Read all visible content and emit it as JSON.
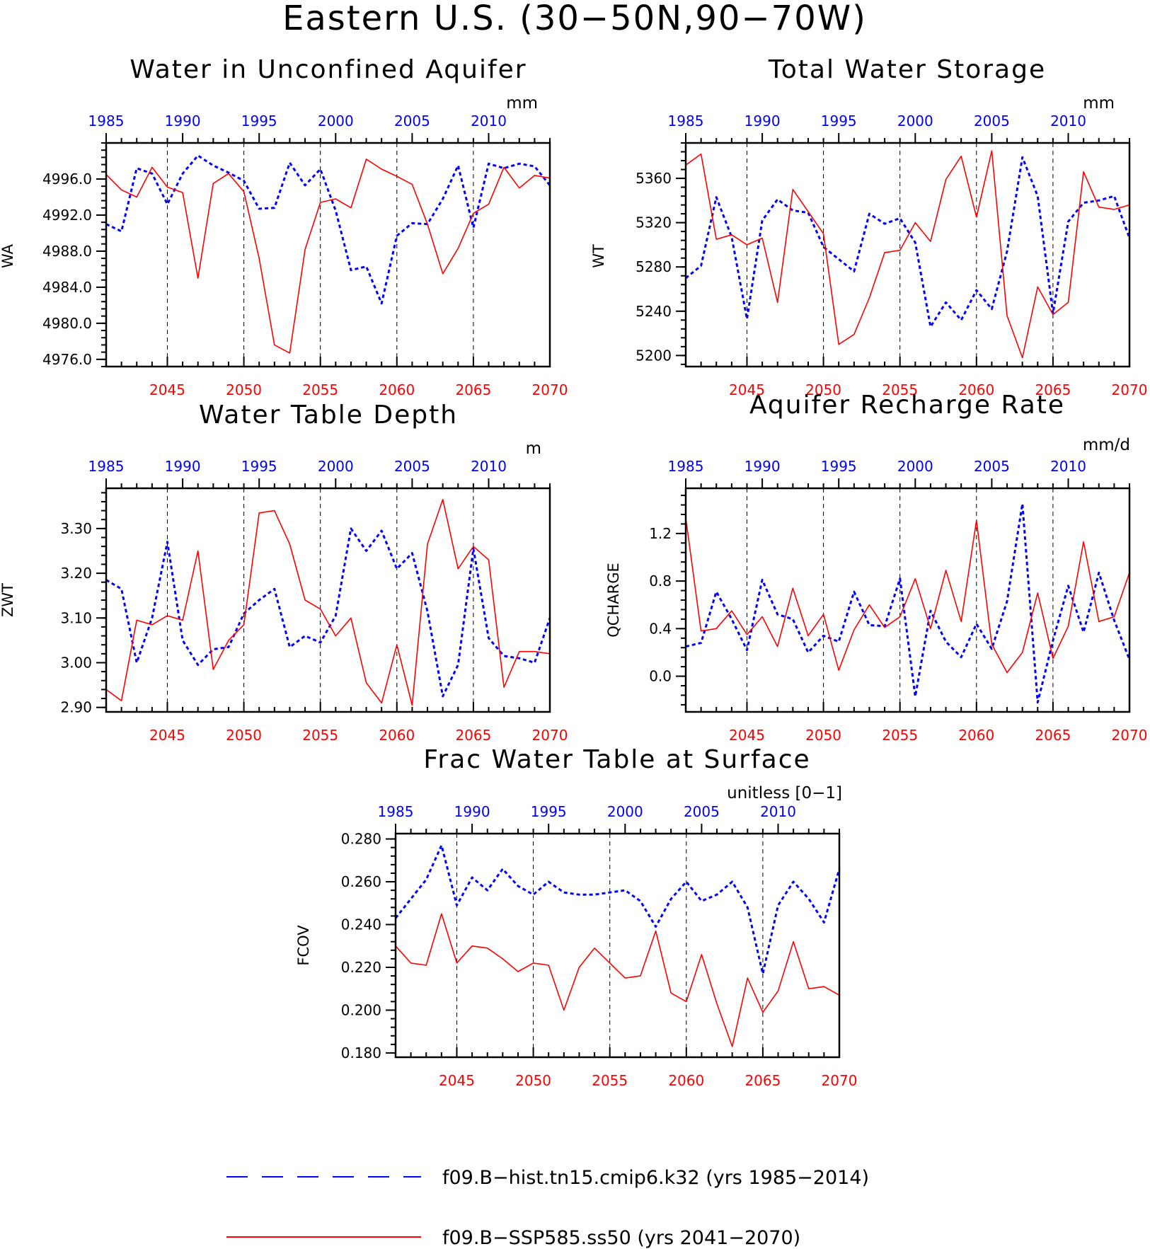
{
  "figure": {
    "title": "Eastern U.S. (30−50N,90−70W)",
    "top_axis_color": "#0000ff",
    "bottom_axis_color": "#ff0000",
    "top_ticks": [
      1985,
      1990,
      1995,
      2000,
      2005,
      2010
    ],
    "bottom_ticks": [
      2045,
      2050,
      2055,
      2060,
      2065,
      2070
    ],
    "dashed_verticals_at": [
      2045,
      2050,
      2055,
      2060,
      2065
    ]
  },
  "legend": {
    "hist": {
      "label": "f09.B−hist.tn15.cmip6.k32 (yrs 1985−2014)",
      "color": "#0000ff",
      "style": "dashed"
    },
    "ssp": {
      "label": "f09.B−SSP585.ss50 (yrs 2041−2070)",
      "color": "#ff0000",
      "style": "solid"
    }
  },
  "chart_data": [
    {
      "type": "line",
      "title": "Water in Unconfined Aquifer",
      "units": "mm",
      "ylabel": "WA",
      "ylim": [
        4975.2,
        5000.0
      ],
      "yticks": [
        4976.0,
        4980.0,
        4984.0,
        4988.0,
        4992.0,
        4996.0
      ],
      "ytick_labels": [
        "4976.0",
        "4980.0",
        "4984.0",
        "4988.0",
        "4992.0",
        "4996.0"
      ],
      "x_bottom": [
        2041,
        2070
      ],
      "x_top": [
        1985,
        2014
      ],
      "series": [
        {
          "values": [
            4991.0,
            4990.2,
            4997.2,
            4996.6,
            4993.2,
            4996.6,
            4998.6,
            4997.5,
            4996.7,
            4995.8,
            4992.7,
            4992.8,
            4997.8,
            4995.3,
            4997.1,
            4992.5,
            4985.9,
            4986.3,
            4982.2,
            4989.7,
            4991.1,
            4991.0,
            4993.8,
            4997.5,
            4990.6,
            4997.7,
            4997.2,
            4997.7,
            4997.4,
            4995.3
          ]
        },
        {
          "values": [
            4996.5,
            4994.8,
            4994.0,
            4997.3,
            4995.1,
            4994.5,
            4985.0,
            4995.5,
            4996.6,
            4994.6,
            4987.2,
            4977.6,
            4976.7,
            4988.2,
            4993.4,
            4993.8,
            4992.8,
            4998.2,
            4997.1,
            4996.3,
            4995.4,
            4991.0,
            4985.5,
            4988.3,
            4992.2,
            4993.2,
            4997.3,
            4995.0,
            4996.4,
            4996.1
          ]
        }
      ]
    },
    {
      "type": "line",
      "title": "Total Water Storage",
      "units": "mm",
      "ylabel": "WT",
      "ylim": [
        5190.0,
        5392.0
      ],
      "yticks": [
        5200,
        5240,
        5280,
        5320,
        5360
      ],
      "ytick_labels": [
        "5200",
        "5240",
        "5280",
        "5320",
        "5360"
      ],
      "x_bottom": [
        2041,
        2070
      ],
      "x_top": [
        1985,
        2014
      ],
      "series": [
        {
          "values": [
            5270,
            5281,
            5343,
            5307,
            5233,
            5322,
            5341,
            5331,
            5329,
            5298,
            5287,
            5276,
            5328,
            5319,
            5324,
            5302,
            5226,
            5248,
            5232,
            5259,
            5242,
            5294,
            5379,
            5344,
            5238,
            5321,
            5338,
            5340,
            5344,
            5306
          ]
        },
        {
          "values": [
            5372,
            5382,
            5305,
            5309,
            5300,
            5306,
            5248,
            5350,
            5330,
            5310,
            5210,
            5219,
            5252,
            5293,
            5295,
            5320,
            5303,
            5359,
            5380,
            5325,
            5385,
            5236,
            5198,
            5262,
            5237,
            5248,
            5366,
            5334,
            5332,
            5336
          ]
        }
      ]
    },
    {
      "type": "line",
      "title": "Water Table Depth",
      "units": "m",
      "ylabel": "ZWT",
      "ylim": [
        2.89,
        3.39
      ],
      "yticks": [
        2.9,
        3.0,
        3.1,
        3.2,
        3.3
      ],
      "ytick_labels": [
        "2.90",
        "3.00",
        "3.10",
        "3.20",
        "3.30"
      ],
      "x_bottom": [
        2041,
        2070
      ],
      "x_top": [
        1985,
        2014
      ],
      "series": [
        {
          "values": [
            3.185,
            3.165,
            3.0,
            3.1,
            3.27,
            3.05,
            2.995,
            3.03,
            3.035,
            3.11,
            3.14,
            3.165,
            3.035,
            3.06,
            3.045,
            3.105,
            3.3,
            3.25,
            3.295,
            3.21,
            3.245,
            3.115,
            2.925,
            2.995,
            3.255,
            3.055,
            3.015,
            3.01,
            3.0,
            3.1
          ]
        },
        {
          "values": [
            2.94,
            2.915,
            3.095,
            3.085,
            3.105,
            3.095,
            3.25,
            2.985,
            3.05,
            3.085,
            3.335,
            3.34,
            3.265,
            3.14,
            3.12,
            3.06,
            3.1,
            2.955,
            2.91,
            3.04,
            2.905,
            3.265,
            3.365,
            3.21,
            3.26,
            3.23,
            2.945,
            3.025,
            3.025,
            3.02
          ]
        }
      ]
    },
    {
      "type": "line",
      "title": "Aquifer Recharge Rate",
      "units": "mm/d",
      "ylabel": "QCHARGE",
      "ylim": [
        -0.3,
        1.58
      ],
      "yticks": [
        0.0,
        0.4,
        0.8,
        1.2
      ],
      "ytick_labels": [
        "0.0",
        "0.4",
        "0.8",
        "1.2"
      ],
      "x_bottom": [
        2041,
        2070
      ],
      "x_top": [
        1985,
        2014
      ],
      "series": [
        {
          "values": [
            0.25,
            0.28,
            0.71,
            0.48,
            0.22,
            0.81,
            0.52,
            0.48,
            0.2,
            0.34,
            0.29,
            0.71,
            0.43,
            0.42,
            0.82,
            -0.17,
            0.55,
            0.29,
            0.16,
            0.44,
            0.23,
            0.63,
            1.45,
            -0.22,
            0.3,
            0.76,
            0.37,
            0.87,
            0.47,
            0.14
          ]
        },
        {
          "values": [
            1.33,
            0.38,
            0.4,
            0.55,
            0.35,
            0.5,
            0.25,
            0.74,
            0.34,
            0.52,
            0.05,
            0.39,
            0.6,
            0.41,
            0.5,
            0.82,
            0.4,
            0.89,
            0.46,
            1.31,
            0.27,
            0.03,
            0.2,
            0.7,
            0.15,
            0.42,
            1.13,
            0.46,
            0.5,
            0.87
          ]
        }
      ]
    },
    {
      "type": "line",
      "title": "Frac Water Table at Surface",
      "units": "unitless [0−1]",
      "ylabel": "FCOV",
      "ylim": [
        0.178,
        0.2825
      ],
      "yticks": [
        0.18,
        0.2,
        0.22,
        0.24,
        0.26,
        0.28
      ],
      "ytick_labels": [
        "0.180",
        "0.200",
        "0.220",
        "0.240",
        "0.260",
        "0.280"
      ],
      "x_bottom": [
        2041,
        2070
      ],
      "x_top": [
        1985,
        2014
      ],
      "series": [
        {
          "values": [
            0.243,
            0.252,
            0.261,
            0.277,
            0.249,
            0.262,
            0.256,
            0.266,
            0.258,
            0.254,
            0.26,
            0.255,
            0.254,
            0.254,
            0.255,
            0.256,
            0.251,
            0.239,
            0.252,
            0.26,
            0.251,
            0.254,
            0.26,
            0.248,
            0.217,
            0.249,
            0.26,
            0.252,
            0.241,
            0.266
          ]
        },
        {
          "values": [
            0.23,
            0.222,
            0.221,
            0.245,
            0.222,
            0.23,
            0.229,
            0.224,
            0.218,
            0.222,
            0.221,
            0.2,
            0.22,
            0.229,
            0.222,
            0.215,
            0.216,
            0.237,
            0.208,
            0.204,
            0.226,
            0.203,
            0.183,
            0.215,
            0.199,
            0.209,
            0.232,
            0.21,
            0.211,
            0.207
          ]
        }
      ]
    }
  ]
}
